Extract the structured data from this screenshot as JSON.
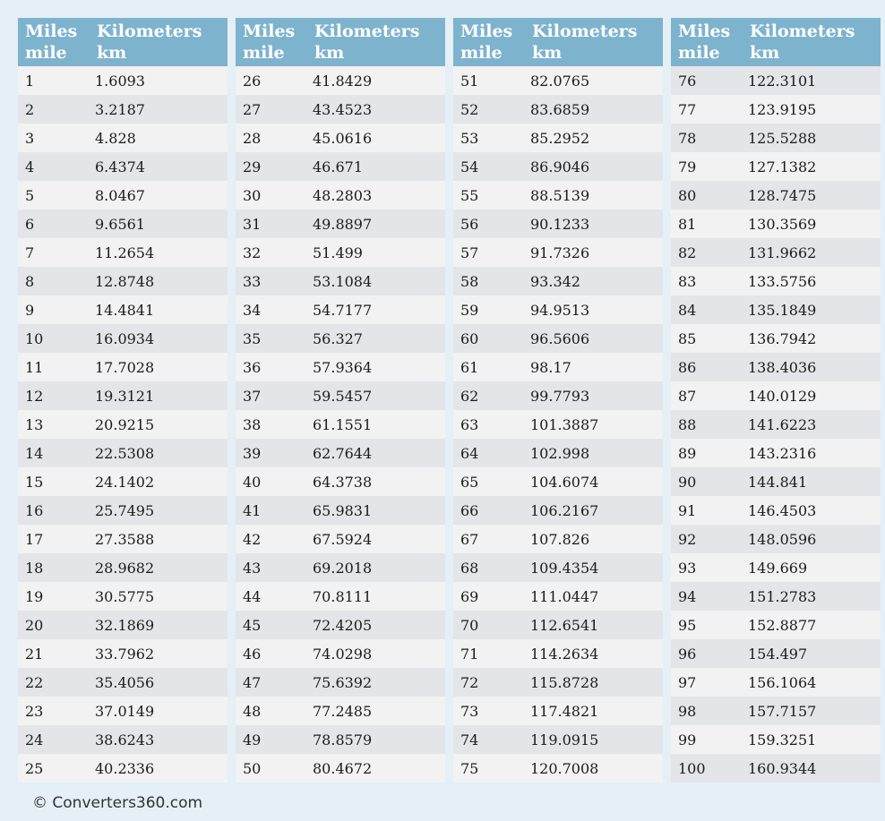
{
  "header": {
    "miles_label": "Miles",
    "miles_unit": "mile",
    "km_label": "Kilometers",
    "km_unit": "km"
  },
  "footer": {
    "copyright": "© Converters360.com"
  },
  "colors": {
    "page_bg": "#e4eff6",
    "header_bg": "#7eb3ce",
    "header_text": "#ffffff",
    "row_light": "#f2f2f2",
    "row_dark": "#e4e5e9",
    "cell_text": "#1b1b1b",
    "footer_text": "#333333"
  },
  "tables": [
    {
      "name": "miles-1-25",
      "first_row_shade": "light",
      "rows": [
        [
          "1",
          "1.6093"
        ],
        [
          "2",
          "3.2187"
        ],
        [
          "3",
          "4.828"
        ],
        [
          "4",
          "6.4374"
        ],
        [
          "5",
          "8.0467"
        ],
        [
          "6",
          "9.6561"
        ],
        [
          "7",
          "11.2654"
        ],
        [
          "8",
          "12.8748"
        ],
        [
          "9",
          "14.4841"
        ],
        [
          "10",
          "16.0934"
        ],
        [
          "11",
          "17.7028"
        ],
        [
          "12",
          "19.3121"
        ],
        [
          "13",
          "20.9215"
        ],
        [
          "14",
          "22.5308"
        ],
        [
          "15",
          "24.1402"
        ],
        [
          "16",
          "25.7495"
        ],
        [
          "17",
          "27.3588"
        ],
        [
          "18",
          "28.9682"
        ],
        [
          "19",
          "30.5775"
        ],
        [
          "20",
          "32.1869"
        ],
        [
          "21",
          "33.7962"
        ],
        [
          "22",
          "35.4056"
        ],
        [
          "23",
          "37.0149"
        ],
        [
          "24",
          "38.6243"
        ],
        [
          "25",
          "40.2336"
        ]
      ]
    },
    {
      "name": "miles-26-50",
      "first_row_shade": "light",
      "rows": [
        [
          "26",
          "41.8429"
        ],
        [
          "27",
          "43.4523"
        ],
        [
          "28",
          "45.0616"
        ],
        [
          "29",
          "46.671"
        ],
        [
          "30",
          "48.2803"
        ],
        [
          "31",
          "49.8897"
        ],
        [
          "32",
          "51.499"
        ],
        [
          "33",
          "53.1084"
        ],
        [
          "34",
          "54.7177"
        ],
        [
          "35",
          "56.327"
        ],
        [
          "36",
          "57.9364"
        ],
        [
          "37",
          "59.5457"
        ],
        [
          "38",
          "61.1551"
        ],
        [
          "39",
          "62.7644"
        ],
        [
          "40",
          "64.3738"
        ],
        [
          "41",
          "65.9831"
        ],
        [
          "42",
          "67.5924"
        ],
        [
          "43",
          "69.2018"
        ],
        [
          "44",
          "70.8111"
        ],
        [
          "45",
          "72.4205"
        ],
        [
          "46",
          "74.0298"
        ],
        [
          "47",
          "75.6392"
        ],
        [
          "48",
          "77.2485"
        ],
        [
          "49",
          "78.8579"
        ],
        [
          "50",
          "80.4672"
        ]
      ]
    },
    {
      "name": "miles-51-75",
      "first_row_shade": "light",
      "rows": [
        [
          "51",
          "82.0765"
        ],
        [
          "52",
          "83.6859"
        ],
        [
          "53",
          "85.2952"
        ],
        [
          "54",
          "86.9046"
        ],
        [
          "55",
          "88.5139"
        ],
        [
          "56",
          "90.1233"
        ],
        [
          "57",
          "91.7326"
        ],
        [
          "58",
          "93.342"
        ],
        [
          "59",
          "94.9513"
        ],
        [
          "60",
          "96.5606"
        ],
        [
          "61",
          "98.17"
        ],
        [
          "62",
          "99.7793"
        ],
        [
          "63",
          "101.3887"
        ],
        [
          "64",
          "102.998"
        ],
        [
          "65",
          "104.6074"
        ],
        [
          "66",
          "106.2167"
        ],
        [
          "67",
          "107.826"
        ],
        [
          "68",
          "109.4354"
        ],
        [
          "69",
          "111.0447"
        ],
        [
          "70",
          "112.6541"
        ],
        [
          "71",
          "114.2634"
        ],
        [
          "72",
          "115.8728"
        ],
        [
          "73",
          "117.4821"
        ],
        [
          "74",
          "119.0915"
        ],
        [
          "75",
          "120.7008"
        ]
      ]
    },
    {
      "name": "miles-76-100",
      "first_row_shade": "dark",
      "rows": [
        [
          "76",
          "122.3101"
        ],
        [
          "77",
          "123.9195"
        ],
        [
          "78",
          "125.5288"
        ],
        [
          "79",
          "127.1382"
        ],
        [
          "80",
          "128.7475"
        ],
        [
          "81",
          "130.3569"
        ],
        [
          "82",
          "131.9662"
        ],
        [
          "83",
          "133.5756"
        ],
        [
          "84",
          "135.1849"
        ],
        [
          "85",
          "136.7942"
        ],
        [
          "86",
          "138.4036"
        ],
        [
          "87",
          "140.0129"
        ],
        [
          "88",
          "141.6223"
        ],
        [
          "89",
          "143.2316"
        ],
        [
          "90",
          "144.841"
        ],
        [
          "91",
          "146.4503"
        ],
        [
          "92",
          "148.0596"
        ],
        [
          "93",
          "149.669"
        ],
        [
          "94",
          "151.2783"
        ],
        [
          "95",
          "152.8877"
        ],
        [
          "96",
          "154.497"
        ],
        [
          "97",
          "156.1064"
        ],
        [
          "98",
          "157.7157"
        ],
        [
          "99",
          "159.3251"
        ],
        [
          "100",
          "160.9344"
        ]
      ]
    }
  ]
}
